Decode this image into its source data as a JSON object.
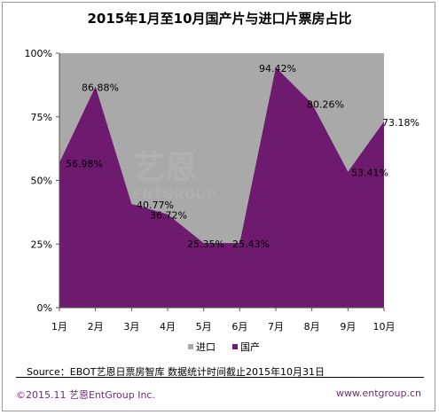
{
  "title": "2015年1月至10月国产片与进口片票房占比",
  "chart_data": {
    "type": "area",
    "stacked": true,
    "title": "2015年1月至10月国产片与进口片票房占比",
    "categories": [
      "1月",
      "2月",
      "3月",
      "4月",
      "5月",
      "6月",
      "7月",
      "8月",
      "9月",
      "10月"
    ],
    "series": [
      {
        "name": "国产",
        "color": "#6e1a6e",
        "values": [
          56.98,
          86.88,
          40.77,
          36.72,
          25.35,
          25.43,
          94.42,
          80.26,
          53.41,
          73.18
        ]
      },
      {
        "name": "进口",
        "color": "#a9a9a9",
        "values": [
          43.02,
          13.12,
          59.23,
          63.28,
          74.65,
          74.57,
          5.58,
          19.74,
          46.59,
          26.82
        ]
      }
    ],
    "data_labels": [
      "56.98%",
      "86.88%",
      "40.77%",
      "36.72%",
      "25.35%",
      "25.43%",
      "94.42%",
      "80.26%",
      "53.41%",
      "73.18%"
    ],
    "y_ticks": [
      "0%",
      "25%",
      "50%",
      "75%",
      "100%"
    ],
    "ylim": [
      0,
      100
    ],
    "legend": [
      "进口",
      "国产"
    ],
    "legend_position": "bottom",
    "grid": false
  },
  "source": "Source：EBOT艺恩日票房智库   数据统计时间截止2015年10月31日",
  "footer": {
    "left": "©2015.11  艺恩EntGroup Inc.",
    "right": "www.entgroup.cn"
  },
  "watermark": {
    "main": "艺恩",
    "sub": "ENTGROUP"
  }
}
